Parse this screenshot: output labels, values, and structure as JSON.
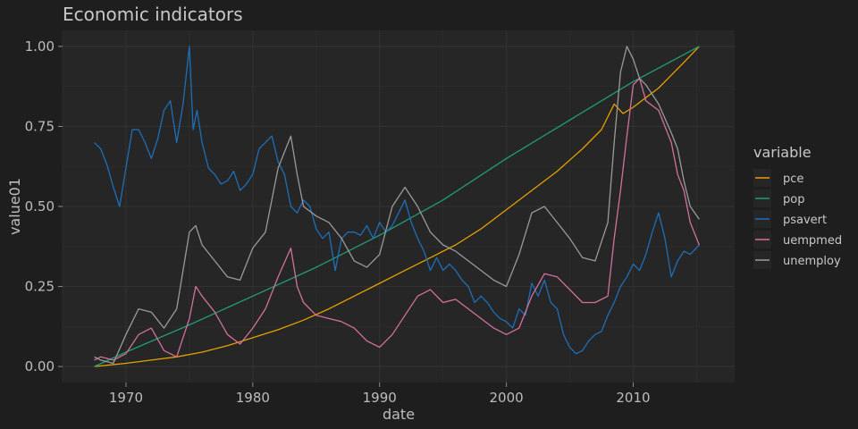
{
  "chart_data": {
    "type": "line",
    "title": "Economic indicators",
    "xlabel": "date",
    "ylabel": "value01",
    "xlim": [
      1965.0,
      2018.0
    ],
    "ylim": [
      -0.05,
      1.05
    ],
    "x_ticks": [
      {
        "value": 1970,
        "label": "1970"
      },
      {
        "value": 1980,
        "label": "1980"
      },
      {
        "value": 1990,
        "label": "1990"
      },
      {
        "value": 2000,
        "label": "2000"
      },
      {
        "value": 2010,
        "label": "2010"
      }
    ],
    "y_ticks": [
      {
        "value": 0.0,
        "label": "0.00"
      },
      {
        "value": 0.25,
        "label": "0.25"
      },
      {
        "value": 0.5,
        "label": "0.50"
      },
      {
        "value": 0.75,
        "label": "0.75"
      },
      {
        "value": 1.0,
        "label": "1.00"
      }
    ],
    "grid": true,
    "legend": {
      "title": "variable",
      "position": "right"
    },
    "series": [
      {
        "name": "pce",
        "color": "#E69F00",
        "x": [
          1967.5,
          1970,
          1972,
          1974,
          1976,
          1978,
          1980,
          1982,
          1984,
          1986,
          1988,
          1990,
          1992,
          1994,
          1996,
          1998,
          2000,
          2002,
          2004,
          2006,
          2007.5,
          2008.5,
          2009.2,
          2010,
          2011,
          2012,
          2013,
          2014,
          2015.2
        ],
        "y": [
          0.0,
          0.01,
          0.02,
          0.03,
          0.045,
          0.065,
          0.09,
          0.115,
          0.145,
          0.18,
          0.22,
          0.26,
          0.3,
          0.34,
          0.38,
          0.43,
          0.49,
          0.55,
          0.61,
          0.68,
          0.74,
          0.82,
          0.79,
          0.81,
          0.84,
          0.87,
          0.91,
          0.95,
          1.0
        ]
      },
      {
        "name": "pop",
        "color": "#1F9E78",
        "x": [
          1967.5,
          1970,
          1975,
          1980,
          1985,
          1990,
          1995,
          2000,
          2005,
          2010,
          2015.2
        ],
        "y": [
          0.0,
          0.045,
          0.13,
          0.22,
          0.31,
          0.41,
          0.52,
          0.65,
          0.77,
          0.89,
          1.0
        ]
      },
      {
        "name": "psavert",
        "color": "#1D6FB8",
        "x": [
          1967.5,
          1968,
          1968.5,
          1969,
          1969.5,
          1970,
          1970.5,
          1971,
          1971.5,
          1972,
          1972.5,
          1973,
          1973.5,
          1974,
          1974.5,
          1975,
          1975.3,
          1975.6,
          1976,
          1976.5,
          1977,
          1977.5,
          1978,
          1978.5,
          1979,
          1979.5,
          1980,
          1980.5,
          1981,
          1981.5,
          1982,
          1982.5,
          1983,
          1983.5,
          1984,
          1984.5,
          1985,
          1985.5,
          1986,
          1986.5,
          1987,
          1987.5,
          1988,
          1988.5,
          1989,
          1989.5,
          1990,
          1990.5,
          1991,
          1991.5,
          1992,
          1992.5,
          1993,
          1993.5,
          1994,
          1994.5,
          1995,
          1995.5,
          1996,
          1996.5,
          1997,
          1997.5,
          1998,
          1998.5,
          1999,
          1999.5,
          2000,
          2000.5,
          2001,
          2001.5,
          2002,
          2002.5,
          2003,
          2003.5,
          2004,
          2004.5,
          2005,
          2005.5,
          2006,
          2006.5,
          2007,
          2007.5,
          2008,
          2008.5,
          2009,
          2009.5,
          2010,
          2010.5,
          2011,
          2011.5,
          2012,
          2012.5,
          2013,
          2013.5,
          2014,
          2014.5,
          2015.2
        ],
        "y": [
          0.7,
          0.68,
          0.63,
          0.56,
          0.5,
          0.62,
          0.74,
          0.74,
          0.7,
          0.65,
          0.71,
          0.8,
          0.83,
          0.7,
          0.82,
          1.0,
          0.74,
          0.8,
          0.7,
          0.62,
          0.6,
          0.57,
          0.58,
          0.61,
          0.55,
          0.57,
          0.6,
          0.68,
          0.7,
          0.72,
          0.64,
          0.6,
          0.5,
          0.48,
          0.52,
          0.5,
          0.43,
          0.4,
          0.42,
          0.3,
          0.4,
          0.42,
          0.42,
          0.41,
          0.44,
          0.4,
          0.45,
          0.42,
          0.44,
          0.48,
          0.52,
          0.45,
          0.4,
          0.36,
          0.3,
          0.34,
          0.3,
          0.32,
          0.3,
          0.27,
          0.25,
          0.2,
          0.22,
          0.2,
          0.17,
          0.15,
          0.14,
          0.12,
          0.18,
          0.16,
          0.26,
          0.22,
          0.27,
          0.2,
          0.18,
          0.1,
          0.06,
          0.04,
          0.05,
          0.08,
          0.1,
          0.11,
          0.16,
          0.2,
          0.25,
          0.28,
          0.32,
          0.3,
          0.35,
          0.42,
          0.48,
          0.4,
          0.28,
          0.33,
          0.36,
          0.35,
          0.38
        ]
      },
      {
        "name": "uempmed",
        "color": "#D4709D",
        "x": [
          1967.5,
          1968,
          1969,
          1970,
          1971,
          1972,
          1973,
          1974,
          1975,
          1975.5,
          1976,
          1977,
          1978,
          1979,
          1980,
          1981,
          1982,
          1983,
          1983.5,
          1984,
          1985,
          1986,
          1987,
          1988,
          1989,
          1990,
          1991,
          1992,
          1993,
          1994,
          1995,
          1996,
          1997,
          1998,
          1999,
          2000,
          2001,
          2002,
          2003,
          2004,
          2005,
          2006,
          2007,
          2008,
          2008.5,
          2009,
          2009.5,
          2010,
          2010.5,
          2011,
          2012,
          2013,
          2013.5,
          2014,
          2014.5,
          2015.2
        ],
        "y": [
          0.02,
          0.03,
          0.02,
          0.04,
          0.1,
          0.12,
          0.05,
          0.03,
          0.15,
          0.25,
          0.22,
          0.17,
          0.1,
          0.07,
          0.12,
          0.18,
          0.28,
          0.37,
          0.25,
          0.2,
          0.16,
          0.15,
          0.14,
          0.12,
          0.08,
          0.06,
          0.1,
          0.16,
          0.22,
          0.24,
          0.2,
          0.21,
          0.18,
          0.15,
          0.12,
          0.1,
          0.12,
          0.22,
          0.29,
          0.28,
          0.24,
          0.2,
          0.2,
          0.22,
          0.4,
          0.55,
          0.72,
          0.88,
          0.9,
          0.83,
          0.8,
          0.7,
          0.6,
          0.55,
          0.45,
          0.38
        ]
      },
      {
        "name": "unemploy",
        "color": "#9A9A9A",
        "x": [
          1967.5,
          1968,
          1969,
          1970,
          1971,
          1972,
          1973,
          1974,
          1975,
          1975.5,
          1976,
          1977,
          1978,
          1979,
          1980,
          1981,
          1982,
          1983,
          1983.5,
          1984,
          1985,
          1986,
          1987,
          1988,
          1989,
          1990,
          1991,
          1992,
          1993,
          1994,
          1995,
          1996,
          1997,
          1998,
          1999,
          2000,
          2001,
          2002,
          2003,
          2004,
          2005,
          2006,
          2007,
          2008,
          2008.5,
          2009,
          2009.5,
          2010,
          2010.5,
          2011,
          2012,
          2013,
          2013.5,
          2014,
          2014.5,
          2015.2
        ],
        "y": [
          0.03,
          0.02,
          0.01,
          0.1,
          0.18,
          0.17,
          0.12,
          0.18,
          0.42,
          0.44,
          0.38,
          0.33,
          0.28,
          0.27,
          0.37,
          0.42,
          0.62,
          0.72,
          0.6,
          0.5,
          0.47,
          0.45,
          0.4,
          0.33,
          0.31,
          0.35,
          0.5,
          0.56,
          0.5,
          0.42,
          0.38,
          0.36,
          0.33,
          0.3,
          0.27,
          0.25,
          0.35,
          0.48,
          0.5,
          0.45,
          0.4,
          0.34,
          0.33,
          0.45,
          0.7,
          0.92,
          1.0,
          0.96,
          0.9,
          0.88,
          0.82,
          0.73,
          0.68,
          0.58,
          0.5,
          0.46
        ]
      }
    ]
  }
}
